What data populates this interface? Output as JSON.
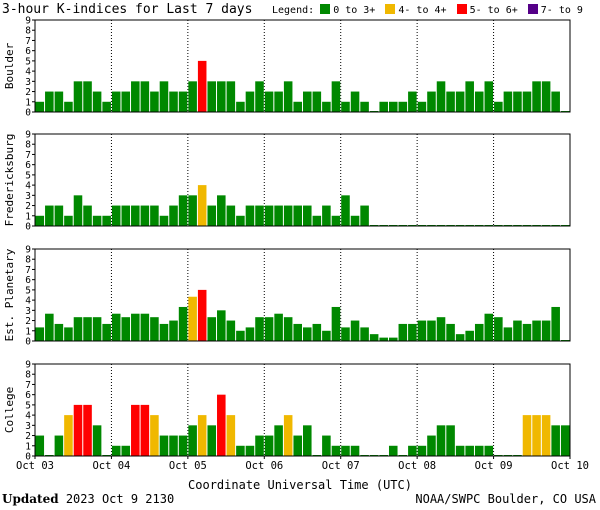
{
  "title": "3-hour K-indices for Last 7 days",
  "legend": {
    "label": "Legend:",
    "items": [
      {
        "label": "0 to 3+",
        "color": "#008800"
      },
      {
        "label": "4- to 4+",
        "color": "#f0b800"
      },
      {
        "label": "5- to 6+",
        "color": "#ff0000"
      },
      {
        "label": "7- to 9",
        "color": "#550088"
      }
    ]
  },
  "footer": {
    "updated_label": "Updated",
    "updated_value": "2023 Oct  9 2130",
    "source": "NOAA/SWPC Boulder, CO USA"
  },
  "chart_data": {
    "type": "bar",
    "xlabel": "Coordinate Universal Time (UTC)",
    "x_ticks": [
      "Oct 03",
      "Oct 04",
      "Oct 05",
      "Oct 06",
      "Oct 07",
      "Oct 08",
      "Oct 09",
      "Oct 10"
    ],
    "ylim": [
      0,
      9
    ],
    "y_ticks": [
      0,
      1,
      2,
      3,
      4,
      5,
      6,
      7,
      8,
      9
    ],
    "intervals_per_day": 8,
    "days": 7,
    "panels": [
      {
        "name": "Boulder",
        "values": [
          1,
          2,
          2,
          1,
          3,
          3,
          2,
          1,
          2,
          2,
          3,
          3,
          2,
          3,
          2,
          2,
          3,
          5,
          3,
          3,
          3,
          1,
          2,
          3,
          2,
          2,
          3,
          1,
          2,
          2,
          1,
          3,
          1,
          2,
          1,
          0,
          1,
          1,
          1,
          2,
          1,
          2,
          3,
          2,
          2,
          3,
          2,
          3,
          1,
          2,
          2,
          2,
          3,
          3,
          2,
          0
        ]
      },
      {
        "name": "Fredericksburg",
        "values": [
          1,
          2,
          2,
          1,
          3,
          2,
          1,
          1,
          2,
          2,
          2,
          2,
          2,
          1,
          2,
          3,
          3,
          4,
          2,
          3,
          2,
          1,
          2,
          2,
          2,
          2,
          2,
          2,
          2,
          1,
          2,
          1,
          3,
          1,
          2,
          0,
          0,
          0,
          0,
          0,
          0,
          0,
          0,
          0,
          0,
          0,
          0,
          0,
          0,
          0,
          0,
          0,
          0,
          0,
          0,
          0
        ]
      },
      {
        "name": "Est. Planetary",
        "values": [
          1.33,
          2.67,
          1.67,
          1.33,
          2.33,
          2.33,
          2.33,
          1.67,
          2.67,
          2.33,
          2.67,
          2.67,
          2.33,
          1.67,
          2.0,
          3.33,
          4.33,
          5.0,
          2.33,
          3.0,
          2.0,
          1.0,
          1.33,
          2.33,
          2.33,
          2.67,
          2.33,
          1.67,
          1.33,
          1.67,
          1.0,
          3.33,
          1.33,
          2.0,
          1.33,
          0.67,
          0.33,
          0.33,
          1.67,
          1.67,
          2.0,
          2.0,
          2.33,
          1.67,
          0.67,
          1.0,
          1.67,
          2.67,
          2.33,
          1.33,
          2.0,
          1.67,
          2.0,
          2.0,
          3.33,
          0
        ]
      },
      {
        "name": "College",
        "values": [
          2,
          0,
          2,
          4,
          5,
          5,
          3,
          0,
          1,
          1,
          5,
          5,
          4,
          2,
          2,
          2,
          3,
          4,
          3,
          6,
          4,
          1,
          1,
          2,
          2,
          3,
          4,
          2,
          3,
          0,
          2,
          1,
          1,
          1,
          0,
          0,
          0,
          1,
          0,
          1,
          1,
          2,
          3,
          3,
          1,
          1,
          1,
          1,
          0,
          0,
          0,
          4,
          4,
          4,
          3,
          3
        ]
      }
    ]
  }
}
